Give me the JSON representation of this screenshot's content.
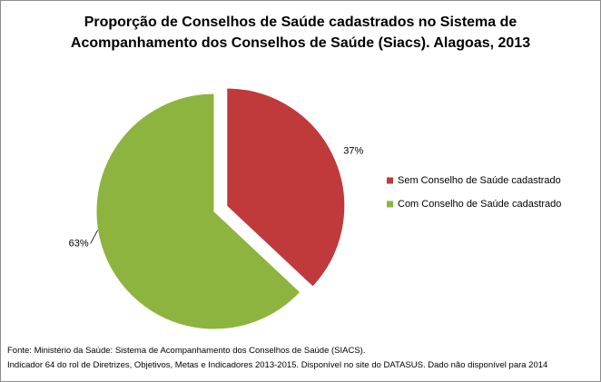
{
  "chart_data": {
    "type": "pie",
    "title": "Proporção de Conselhos de Saúde cadastrados no Sistema de Acompanhamento dos Conselhos de Saúde (Siacs). Alagoas, 2013",
    "categories": [
      "Sem Conselho de Saúde cadastrado",
      "Com Conselho de Saúde cadastrado"
    ],
    "values": [
      37,
      63
    ],
    "value_labels": [
      "37%",
      "63%"
    ],
    "colors": [
      "#c0393b",
      "#8db43e"
    ],
    "legend": "right",
    "source": [
      "Fonte: Ministério da Saúde:  Sistema de Acompanhamento dos Conselhos de Saúde (SIACS).",
      "Indicador 64 do rol de Diretrizes, Objetivos, Metas e Indicadores 2013-2015. Disponível no site do DATASUS. Dado não disponível para 2014"
    ]
  }
}
